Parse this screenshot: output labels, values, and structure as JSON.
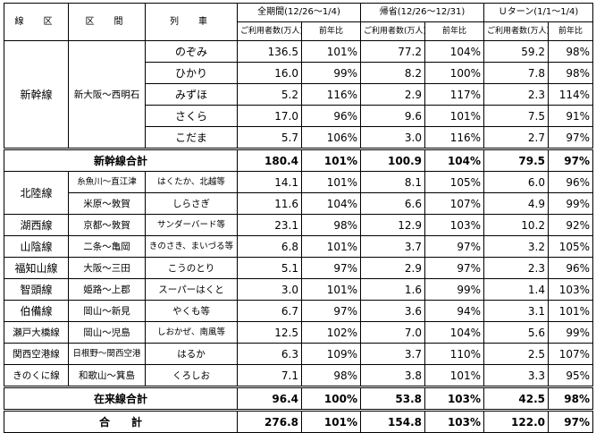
{
  "header": {
    "line_area": "線　区",
    "section": "区　間",
    "train": "列　車",
    "period_full": "全期間(12/26～1/4)",
    "period_homecoming": "帰省(12/26～12/31)",
    "period_uturn": "Ｕターン(1/1～1/4)",
    "users_label": "ご利用者数(万人)",
    "yoy_label": "前年比"
  },
  "shinkansen": {
    "line": "新幹線",
    "section": "新大阪～西明石",
    "rows": [
      {
        "train": "のぞみ",
        "v": [
          "136.5",
          "101%",
          "77.2",
          "104%",
          "59.2",
          "98%"
        ]
      },
      {
        "train": "ひかり",
        "v": [
          "16.0",
          "99%",
          "8.2",
          "100%",
          "7.8",
          "98%"
        ]
      },
      {
        "train": "みずほ",
        "v": [
          "5.2",
          "116%",
          "2.9",
          "117%",
          "2.3",
          "114%"
        ]
      },
      {
        "train": "さくら",
        "v": [
          "17.0",
          "96%",
          "9.6",
          "101%",
          "7.5",
          "91%"
        ]
      },
      {
        "train": "こだま",
        "v": [
          "5.7",
          "106%",
          "3.0",
          "116%",
          "2.7",
          "97%"
        ]
      }
    ],
    "total_label": "新幹線合計",
    "total": [
      "180.4",
      "101%",
      "100.9",
      "104%",
      "79.5",
      "97%"
    ]
  },
  "conventional": {
    "rows": [
      {
        "line": "北陸線",
        "section": "糸魚川～直江津",
        "train": "はくたか、北越等",
        "v": [
          "14.1",
          "101%",
          "8.1",
          "105%",
          "6.0",
          "96%"
        ]
      },
      {
        "line": "",
        "section": "米原～敦賀",
        "train": "しらさぎ",
        "v": [
          "11.6",
          "104%",
          "6.6",
          "107%",
          "4.9",
          "99%"
        ]
      },
      {
        "line": "湖西線",
        "section": "京都～敦賀",
        "train": "サンダーバード等",
        "v": [
          "23.1",
          "98%",
          "12.9",
          "103%",
          "10.2",
          "92%"
        ]
      },
      {
        "line": "山陰線",
        "section": "二条～亀岡",
        "train": "きのさき、まいづる等",
        "v": [
          "6.8",
          "101%",
          "3.7",
          "97%",
          "3.2",
          "105%"
        ]
      },
      {
        "line": "福知山線",
        "section": "大阪～三田",
        "train": "こうのとり",
        "v": [
          "5.1",
          "97%",
          "2.9",
          "97%",
          "2.3",
          "96%"
        ]
      },
      {
        "line": "智頭線",
        "section": "姫路～上郡",
        "train": "スーパーはくと",
        "v": [
          "3.0",
          "101%",
          "1.6",
          "99%",
          "1.4",
          "103%"
        ]
      },
      {
        "line": "伯備線",
        "section": "岡山～新見",
        "train": "やくも等",
        "v": [
          "6.7",
          "97%",
          "3.6",
          "94%",
          "3.1",
          "101%"
        ]
      },
      {
        "line": "瀬戸大橋線",
        "section": "岡山～児島",
        "train": "しおかぜ、南風等",
        "v": [
          "12.5",
          "102%",
          "7.0",
          "104%",
          "5.6",
          "99%"
        ]
      },
      {
        "line": "関西空港線",
        "section": "日根野～関西空港",
        "train": "はるか",
        "v": [
          "6.3",
          "109%",
          "3.7",
          "110%",
          "2.5",
          "107%"
        ]
      },
      {
        "line": "きのくに線",
        "section": "和歌山～箕島",
        "train": "くろしお",
        "v": [
          "7.1",
          "98%",
          "3.8",
          "101%",
          "3.3",
          "95%"
        ]
      }
    ],
    "total_label": "在来線合計",
    "total": [
      "96.4",
      "100%",
      "53.8",
      "103%",
      "42.5",
      "98%"
    ]
  },
  "grand": {
    "label": "合　　計",
    "total": [
      "276.8",
      "101%",
      "154.8",
      "103%",
      "122.0",
      "97%"
    ]
  }
}
